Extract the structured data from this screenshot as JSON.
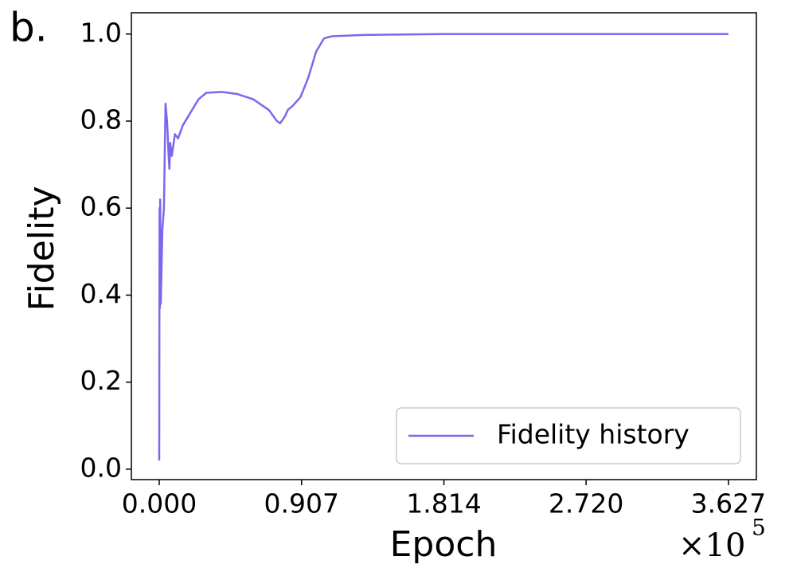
{
  "chart_data": {
    "type": "line",
    "panel_label": "b.",
    "xlabel": "Epoch",
    "ylabel": "Fidelity",
    "x_multiplier": "×10",
    "x_exponent": "5",
    "x": [
      0.0,
      0.002,
      0.004,
      0.006,
      0.01,
      0.02,
      0.03,
      0.04,
      0.05,
      0.06,
      0.065,
      0.07,
      0.08,
      0.1,
      0.12,
      0.15,
      0.2,
      0.25,
      0.3,
      0.4,
      0.5,
      0.6,
      0.7,
      0.75,
      0.77,
      0.8,
      0.82,
      0.85,
      0.9,
      0.95,
      1.0,
      1.05,
      1.1,
      1.3,
      1.8,
      3.627
    ],
    "series": [
      {
        "name": "Fidelity history",
        "color": "#7b68ee",
        "values": [
          0.02,
          0.6,
          0.37,
          0.62,
          0.38,
          0.55,
          0.6,
          0.84,
          0.8,
          0.72,
          0.69,
          0.75,
          0.72,
          0.77,
          0.76,
          0.79,
          0.82,
          0.85,
          0.865,
          0.867,
          0.862,
          0.85,
          0.825,
          0.8,
          0.795,
          0.81,
          0.826,
          0.835,
          0.855,
          0.9,
          0.96,
          0.99,
          0.995,
          0.998,
          1.0,
          1.0
        ]
      }
    ],
    "xlim": [
      -0.1775,
      3.805
    ],
    "xticks": [
      {
        "value": 0,
        "label": "0.000"
      },
      0.907,
      1.814,
      {
        "value": 2.72,
        "label": "2.720"
      },
      3.627
    ],
    "ylim": [
      -0.024,
      1.049
    ],
    "yticks": [
      {
        "value": 0,
        "label": "0.0"
      },
      0.2,
      0.4,
      0.6,
      0.8,
      {
        "value": 1,
        "label": "1.0"
      }
    ],
    "legend": "lower right"
  }
}
